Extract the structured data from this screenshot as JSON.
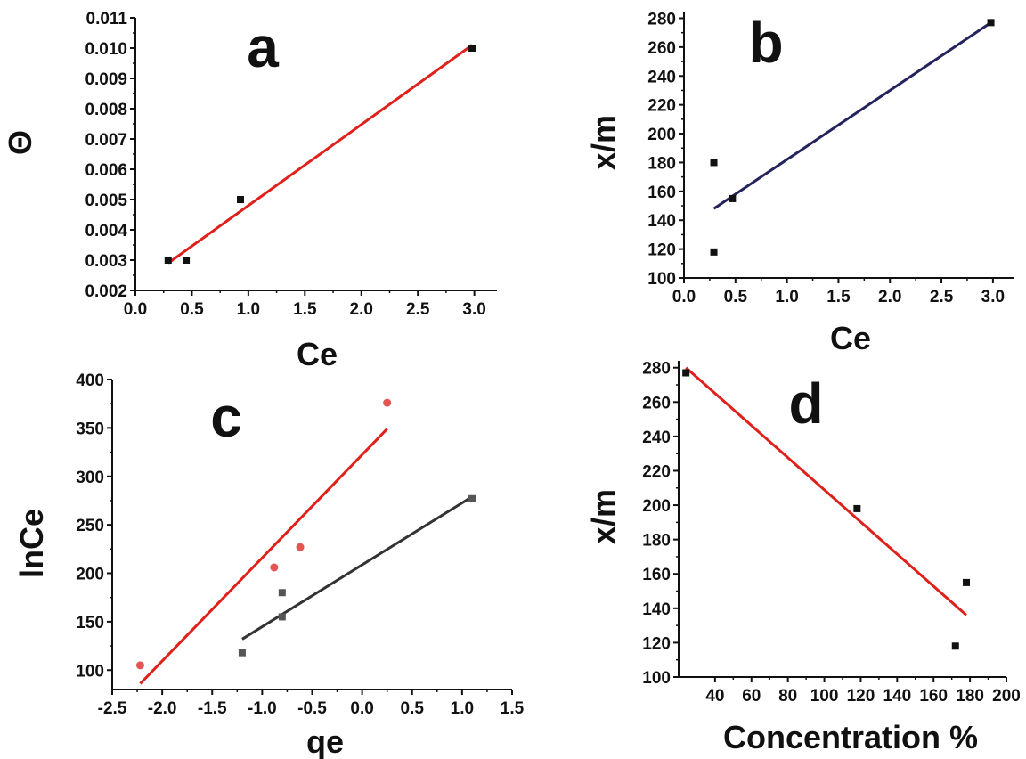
{
  "chart_data": [
    {
      "type": "scatter",
      "panel_label": "a",
      "xlabel": "Ce",
      "ylabel": "Θ",
      "xlim": [
        0.0,
        3.2
      ],
      "ylim": [
        0.002,
        0.011
      ],
      "xticks": [
        0.0,
        0.5,
        1.0,
        1.5,
        2.0,
        2.5,
        3.0
      ],
      "xtick_labels": [
        "0.0",
        "0.5",
        "1.0",
        "1.5",
        "2.0",
        "2.5",
        "3.0"
      ],
      "yticks": [
        0.002,
        0.003,
        0.004,
        0.005,
        0.006,
        0.007,
        0.008,
        0.009,
        0.01,
        0.011
      ],
      "ytick_labels": [
        "0.002",
        "0.003",
        "0.004",
        "0.005",
        "0.006",
        "0.007",
        "0.008",
        "0.009",
        "0.010",
        "0.011"
      ],
      "series": [
        {
          "points": [
            [
              0.29,
              0.003
            ],
            [
              0.45,
              0.003
            ],
            [
              0.93,
              0.005
            ],
            [
              2.98,
              0.01
            ]
          ],
          "marker": "square",
          "color": "#111111",
          "fit": [
            [
              0.29,
              0.0029
            ],
            [
              2.98,
              0.0101
            ]
          ],
          "fit_color": "#e0201b"
        }
      ]
    },
    {
      "type": "scatter",
      "panel_label": "b",
      "xlabel": "Ce",
      "ylabel": "x/m",
      "xlim": [
        0.0,
        3.2
      ],
      "ylim": [
        100,
        284
      ],
      "xticks": [
        0.0,
        0.5,
        1.0,
        1.5,
        2.0,
        2.5,
        3.0
      ],
      "xtick_labels": [
        "0.0",
        "0.5",
        "1.0",
        "1.5",
        "2.0",
        "2.5",
        "3.0"
      ],
      "yticks": [
        100,
        120,
        140,
        160,
        180,
        200,
        220,
        240,
        260,
        280
      ],
      "ytick_labels": [
        "100",
        "120",
        "140",
        "160",
        "180",
        "200",
        "220",
        "240",
        "260",
        "280"
      ],
      "series": [
        {
          "points": [
            [
              0.29,
              180
            ],
            [
              0.29,
              118
            ],
            [
              0.47,
              155
            ],
            [
              2.98,
              277
            ]
          ],
          "marker": "square",
          "color": "#111111",
          "fit": [
            [
              0.29,
              148
            ],
            [
              2.98,
              277
            ]
          ],
          "fit_color": "#24235e"
        }
      ]
    },
    {
      "type": "scatter",
      "panel_label": "c",
      "xlabel": "qe",
      "ylabel": "lnCe",
      "xlim": [
        -2.5,
        1.5
      ],
      "ylim": [
        80,
        400
      ],
      "xticks": [
        -2.5,
        -2.0,
        -1.5,
        -1.0,
        -0.5,
        0.0,
        0.5,
        1.0,
        1.5
      ],
      "xtick_labels": [
        "-2.5",
        "-2.0",
        "-1.5",
        "-1.0",
        "-0.5",
        "0.0",
        "0.5",
        "1.0",
        "1.5"
      ],
      "yticks": [
        100,
        150,
        200,
        250,
        300,
        350,
        400
      ],
      "ytick_labels": [
        "100",
        "150",
        "200",
        "250",
        "300",
        "350",
        "400"
      ],
      "series": [
        {
          "points": [
            [
              -2.22,
              105
            ],
            [
              -0.88,
              206
            ],
            [
              -0.62,
              227
            ],
            [
              0.25,
              376
            ]
          ],
          "marker": "circle",
          "color": "#e35552",
          "fit": [
            [
              -2.22,
              86
            ],
            [
              0.25,
              349
            ]
          ],
          "fit_color": "#e0201b"
        },
        {
          "points": [
            [
              -1.2,
              118
            ],
            [
              -0.8,
              180
            ],
            [
              -0.8,
              155
            ],
            [
              1.1,
              277
            ]
          ],
          "marker": "square",
          "color": "#555555",
          "fit": [
            [
              -1.2,
              132
            ],
            [
              1.1,
              279
            ]
          ],
          "fit_color": "#333333"
        }
      ]
    },
    {
      "type": "scatter",
      "panel_label": "d",
      "xlabel": "Concentration %",
      "ylabel": "x/m",
      "xlim": [
        20,
        200
      ],
      "ylim": [
        100,
        284
      ],
      "xticks": [
        40,
        60,
        80,
        100,
        120,
        140,
        160,
        180,
        200
      ],
      "xtick_labels": [
        "40",
        "60",
        "80",
        "100",
        "120",
        "140",
        "160",
        "180",
        "200"
      ],
      "yticks": [
        100,
        120,
        140,
        160,
        180,
        200,
        220,
        240,
        260,
        280
      ],
      "ytick_labels": [
        "100",
        "120",
        "140",
        "160",
        "180",
        "200",
        "220",
        "240",
        "260",
        "280"
      ],
      "series": [
        {
          "points": [
            [
              24,
              277
            ],
            [
              118,
              198
            ],
            [
              172,
              118
            ],
            [
              178,
              155
            ]
          ],
          "marker": "square",
          "color": "#111111",
          "fit": [
            [
              24,
              280
            ],
            [
              178,
              136
            ]
          ],
          "fit_color": "#e0201b"
        }
      ]
    }
  ]
}
